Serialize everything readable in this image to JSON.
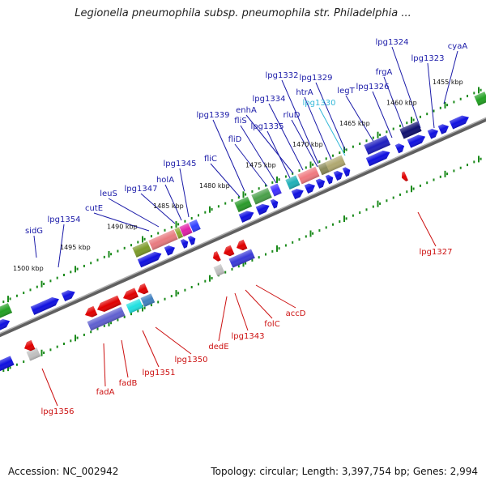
{
  "title": "Legionella pneumophila subsp. pneumophila str. Philadelphia ...",
  "footer": {
    "accession": "Accession: NC_002942",
    "summary": "Topology: circular; Length: 3,397,754 bp; Genes: 2,994"
  },
  "colors": {
    "forward_gene": "#1010e0",
    "reverse_gene": "#e00000",
    "backbone": "#8a8a8a",
    "tick": "#1a8a1a",
    "leader_forward": "#1a1aa8",
    "leader_reverse": "#cc1010",
    "highlight": "#33b8d8"
  },
  "kbp_markers": [
    "1455 kbp",
    "1460 kbp",
    "1465 kbp",
    "1470 kbp",
    "1475 kbp",
    "1480 kbp",
    "1485 kbp",
    "1490 kbp",
    "1495 kbp",
    "1500 kbp"
  ],
  "forward_labels": [
    "cyaA",
    "lpg1324",
    "lpg1323",
    "frgA",
    "lpg1326",
    "legT",
    "lpg1329",
    "lpg1330",
    "htrA",
    "lpg1332",
    "rluD",
    "lpg1334",
    "enhA",
    "lpg1335",
    "fliS",
    "fliD",
    "lpg1339",
    "fliC",
    "lpg1345",
    "holA",
    "lpg1347",
    "leuS",
    "cutE",
    "lpg1354",
    "sidG"
  ],
  "reverse_labels": [
    "lpg1327",
    "accD",
    "folC",
    "lpg1343",
    "dedE",
    "lpg1350",
    "lpg1351",
    "fadB",
    "fadA",
    "lpg1356"
  ]
}
